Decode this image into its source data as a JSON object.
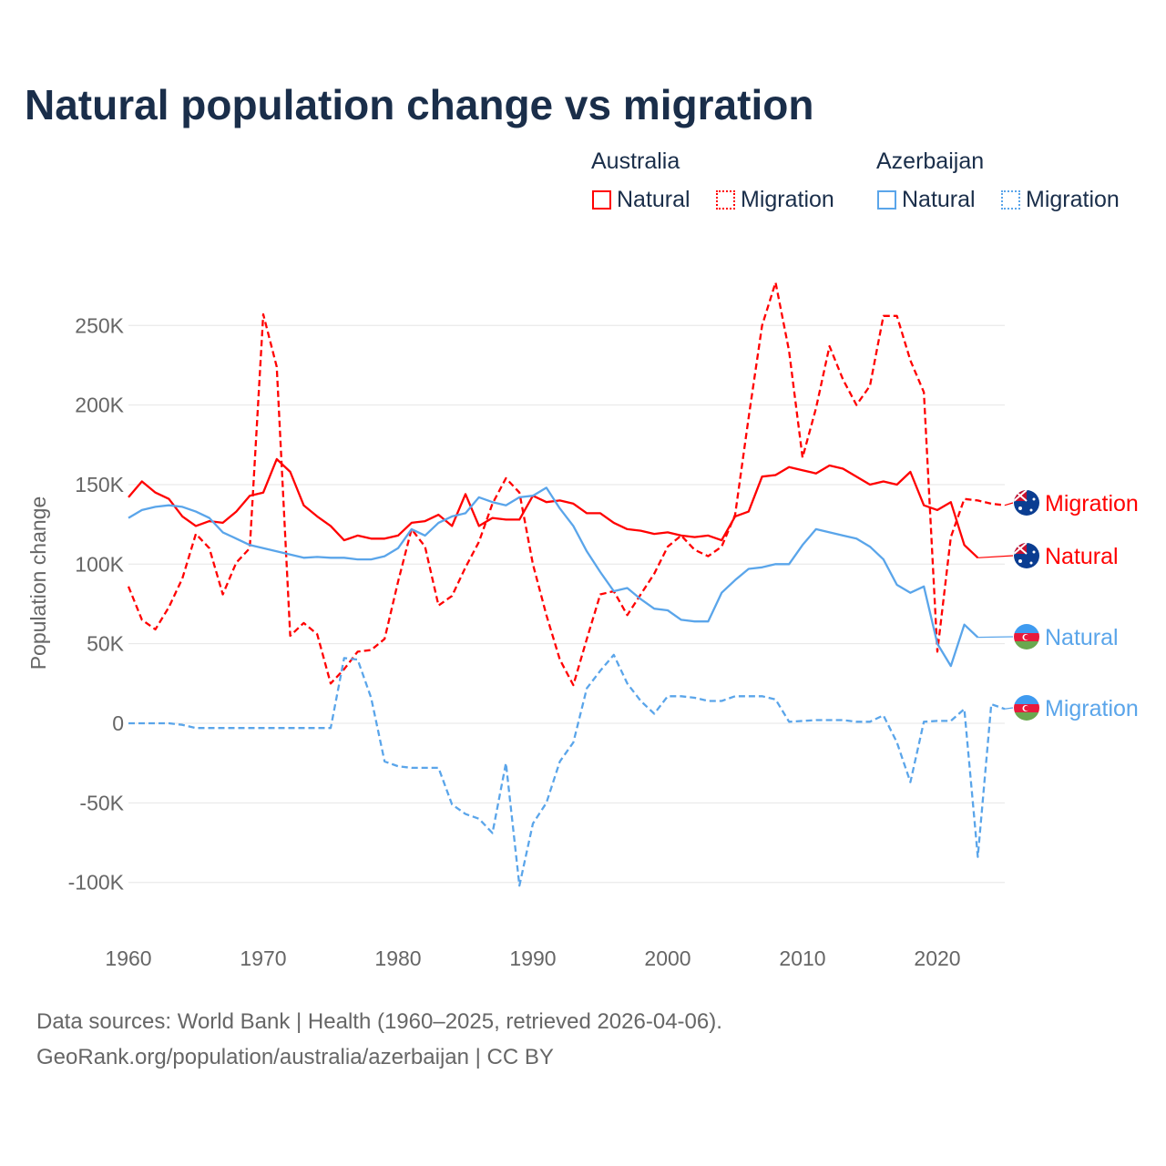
{
  "title": "Natural population change vs migration",
  "legend": {
    "groups": [
      {
        "name": "Australia",
        "items": [
          "Natural",
          "Migration"
        ]
      },
      {
        "name": "Azerbaijan",
        "items": [
          "Natural",
          "Migration"
        ]
      }
    ]
  },
  "colors": {
    "australia": "#ff0000",
    "azerbaijan": "#5aa5ea",
    "grid": "#e6e6e6",
    "text": "#1a2e4a"
  },
  "footer": {
    "line1": "Data sources: World Bank | Health (1960–2025, retrieved 2026-04-06).",
    "line2": "GeoRank.org/population/australia/azerbaijan | CC BY"
  },
  "chart_data": {
    "type": "line",
    "title": "Natural population change vs migration",
    "xlabel": "",
    "ylabel": "Population change",
    "xlim": [
      1960,
      2025
    ],
    "ylim": [
      -100000,
      250000
    ],
    "xticks": [
      1960,
      1970,
      1980,
      1990,
      2000,
      2010,
      2020
    ],
    "yticks": [
      {
        "v": -100000,
        "label": "-100K"
      },
      {
        "v": -50000,
        "label": "-50K"
      },
      {
        "v": 0,
        "label": "0"
      },
      {
        "v": 50000,
        "label": "50K"
      },
      {
        "v": 100000,
        "label": "100K"
      },
      {
        "v": 150000,
        "label": "150K"
      },
      {
        "v": 200000,
        "label": "200K"
      },
      {
        "v": 250000,
        "label": "250K"
      }
    ],
    "series": [
      {
        "name": "Australia Natural",
        "end_label": "Natural",
        "country": "australia",
        "dash": false,
        "start": 1960,
        "values": [
          142,
          152,
          145,
          141,
          130,
          124,
          127,
          126,
          133,
          143,
          145,
          166,
          158,
          137,
          130,
          124,
          115,
          118,
          116,
          116,
          118,
          126,
          127,
          131,
          124,
          144,
          124,
          129,
          128,
          128,
          143,
          139,
          140,
          138,
          132,
          132,
          126,
          122,
          121,
          119,
          120,
          118,
          117,
          118,
          115,
          130,
          133,
          155,
          156,
          161,
          159,
          157,
          162,
          160,
          155,
          150,
          152,
          150,
          158,
          137,
          134,
          139,
          112,
          104
        ]
      },
      {
        "name": "Australia Migration",
        "end_label": "Migration",
        "country": "australia",
        "dash": true,
        "start": 1960,
        "values": [
          86,
          65,
          59,
          73,
          91,
          119,
          110,
          81,
          101,
          110,
          257,
          224,
          55,
          63,
          56,
          25,
          34,
          45,
          46,
          53,
          89,
          122,
          111,
          74,
          80,
          98,
          114,
          138,
          154,
          145,
          100,
          68,
          40,
          24,
          53,
          81,
          83,
          68,
          81,
          94,
          111,
          118,
          109,
          105,
          111,
          131,
          192,
          250,
          277,
          234,
          167,
          198,
          237,
          216,
          200,
          212,
          256,
          256,
          228,
          208,
          45,
          117,
          141,
          140,
          138,
          137
        ]
      },
      {
        "name": "Azerbaijan Natural",
        "end_label": "Natural",
        "country": "azerbaijan",
        "dash": false,
        "start": 1960,
        "values": [
          129,
          134,
          136,
          137,
          136,
          133,
          129,
          120,
          116,
          112,
          110,
          108,
          106,
          104,
          104.5,
          104,
          104,
          103,
          103,
          105,
          110,
          122,
          118,
          126,
          130,
          132,
          142,
          139,
          137,
          142,
          143,
          148,
          135,
          124,
          108,
          95,
          83,
          85,
          78,
          72,
          71,
          65,
          64,
          64,
          82,
          90,
          97,
          98,
          100,
          100,
          112,
          122,
          120,
          118,
          116,
          111,
          103,
          87,
          82,
          86,
          50,
          36,
          62,
          54
        ]
      },
      {
        "name": "Azerbaijan Migration",
        "end_label": "Migration",
        "country": "azerbaijan",
        "dash": true,
        "start": 1960,
        "values": [
          0,
          0,
          0,
          0,
          -1,
          -3,
          -3,
          -3,
          -3,
          -3,
          -3,
          -3,
          -3,
          -3,
          -3,
          -3,
          41,
          40,
          16,
          -24,
          -27,
          -28,
          -28,
          -28,
          -51,
          -57,
          -60,
          -69,
          -25,
          -102,
          -63,
          -50,
          -24,
          -12,
          22,
          33,
          43,
          25,
          14,
          6,
          17,
          17,
          16,
          14,
          14,
          17,
          17,
          17,
          15,
          1,
          1.5,
          2,
          2,
          2,
          1,
          1,
          5,
          -12,
          -37,
          1,
          1.5,
          1.5,
          9,
          -84,
          12,
          9
        ]
      }
    ],
    "value_unit": "thousands"
  }
}
